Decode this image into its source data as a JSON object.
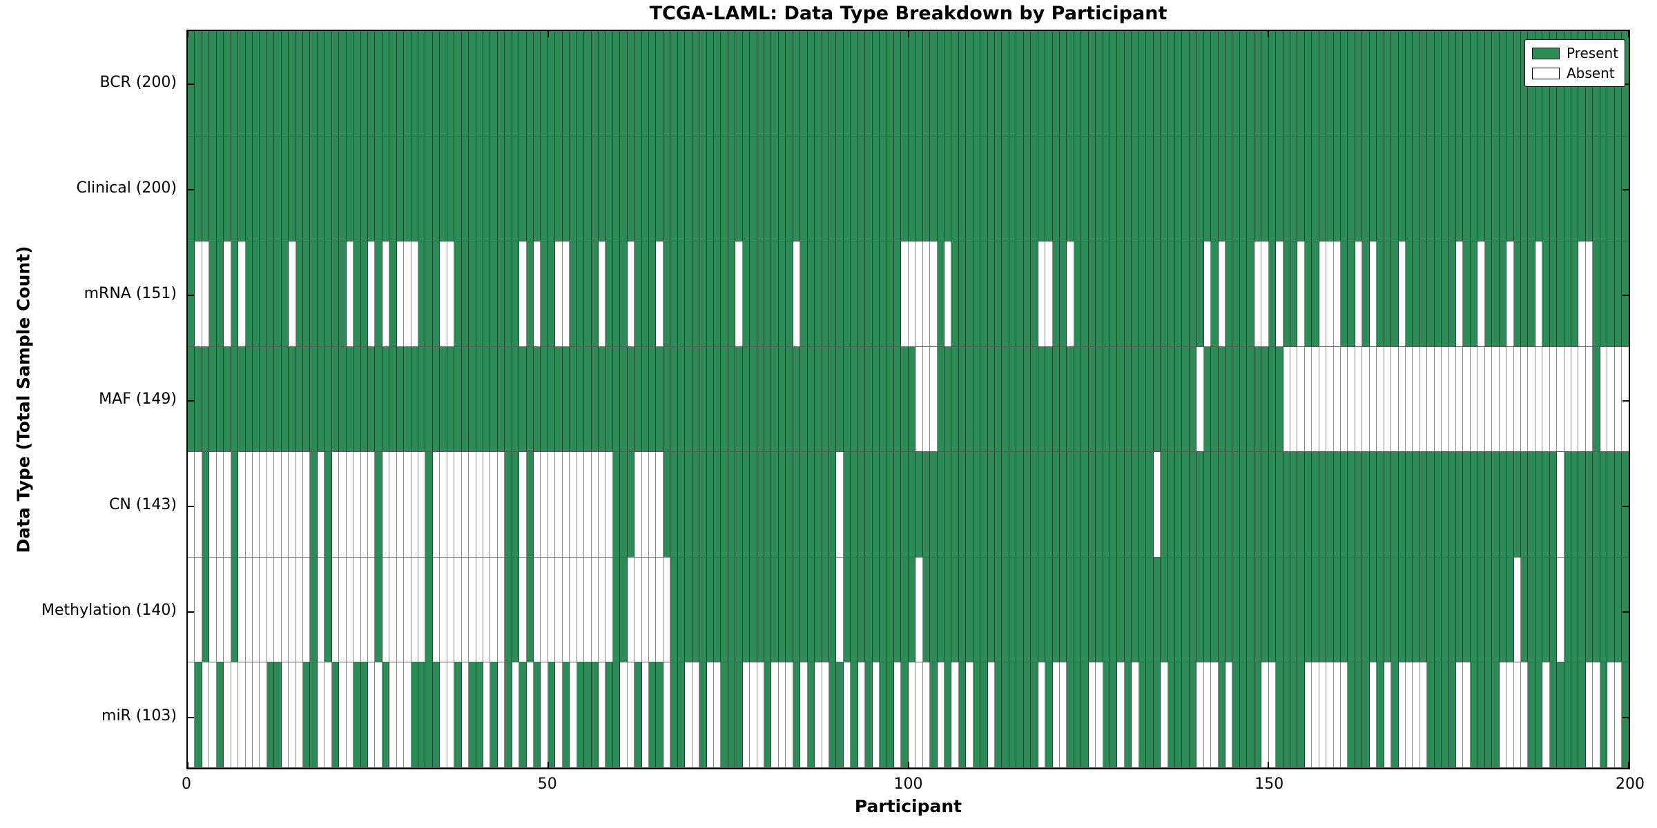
{
  "chart_data": {
    "type": "heatmap",
    "title": "TCGA-LAML: Data Type Breakdown by Participant",
    "xlabel": "Participant",
    "ylabel": "Data Type (Total Sample Count)",
    "x_ticks": [
      0,
      50,
      100,
      150,
      200
    ],
    "x_range": [
      0,
      200
    ],
    "n_participants": 200,
    "legend_position": "upper right",
    "grid": false,
    "present_color": "#2e8b57",
    "absent_color": "#ffffff",
    "legend": [
      {
        "label": "Present",
        "color": "#2e8b57"
      },
      {
        "label": "Absent",
        "color": "#ffffff"
      }
    ],
    "rows": [
      {
        "label": "BCR (200)",
        "name": "BCR",
        "total_present": 200,
        "absent": []
      },
      {
        "label": "Clinical (200)",
        "name": "Clinical",
        "total_present": 200,
        "absent": []
      },
      {
        "label": "mRNA (151)",
        "name": "mRNA",
        "total_present": 151,
        "absent": [
          1,
          2,
          5,
          7,
          14,
          22,
          25,
          27,
          29,
          30,
          31,
          35,
          36,
          46,
          48,
          51,
          52,
          57,
          61,
          65,
          76,
          84,
          99,
          100,
          101,
          102,
          103,
          105,
          118,
          119,
          122,
          141,
          143,
          148,
          149,
          151,
          154,
          157,
          158,
          159,
          162,
          164,
          168,
          176,
          179,
          183,
          187,
          193,
          194
        ]
      },
      {
        "label": "MAF (149)",
        "name": "MAF",
        "total_present": 149,
        "absent": [
          101,
          102,
          103,
          140,
          152,
          153,
          154,
          155,
          156,
          157,
          158,
          159,
          160,
          161,
          162,
          163,
          164,
          165,
          166,
          167,
          168,
          169,
          170,
          171,
          172,
          173,
          174,
          175,
          176,
          177,
          178,
          179,
          180,
          181,
          182,
          183,
          184,
          185,
          186,
          187,
          188,
          189,
          190,
          191,
          192,
          193,
          194,
          196,
          197,
          198,
          199
        ]
      },
      {
        "label": "CN (143)",
        "name": "CN",
        "total_present": 143,
        "absent": [
          0,
          1,
          3,
          4,
          5,
          7,
          8,
          9,
          10,
          11,
          12,
          13,
          14,
          15,
          16,
          18,
          20,
          21,
          22,
          23,
          24,
          25,
          27,
          28,
          29,
          30,
          31,
          32,
          34,
          35,
          36,
          37,
          38,
          39,
          40,
          41,
          42,
          43,
          46,
          48,
          49,
          50,
          51,
          52,
          53,
          54,
          55,
          56,
          57,
          58,
          62,
          63,
          64,
          65,
          90,
          134,
          190
        ]
      },
      {
        "label": "Methylation (140)",
        "name": "Methylation",
        "total_present": 140,
        "absent": [
          0,
          1,
          3,
          4,
          5,
          7,
          8,
          9,
          10,
          11,
          12,
          13,
          14,
          15,
          16,
          18,
          20,
          21,
          22,
          23,
          24,
          25,
          27,
          28,
          29,
          30,
          31,
          32,
          34,
          35,
          36,
          37,
          38,
          39,
          40,
          41,
          42,
          43,
          46,
          48,
          49,
          50,
          51,
          52,
          53,
          54,
          55,
          56,
          57,
          58,
          61,
          62,
          63,
          64,
          65,
          66,
          90,
          101,
          184,
          190
        ]
      },
      {
        "label": "miR (103)",
        "name": "miR",
        "total_present": 103,
        "absent": [
          0,
          2,
          3,
          5,
          6,
          7,
          8,
          9,
          10,
          13,
          14,
          15,
          18,
          19,
          21,
          22,
          25,
          26,
          28,
          29,
          30,
          35,
          36,
          38,
          41,
          43,
          45,
          47,
          49,
          51,
          53,
          57,
          60,
          61,
          63,
          66,
          69,
          70,
          72,
          73,
          77,
          78,
          79,
          81,
          82,
          83,
          85,
          87,
          88,
          91,
          93,
          95,
          98,
          100,
          101,
          102,
          104,
          106,
          108,
          111,
          118,
          120,
          121,
          125,
          126,
          129,
          131,
          135,
          140,
          141,
          142,
          144,
          149,
          150,
          155,
          156,
          157,
          158,
          159,
          160,
          164,
          166,
          168,
          169,
          170,
          171,
          176,
          177,
          182,
          183,
          184,
          185,
          188,
          194,
          195,
          197,
          198
        ]
      }
    ]
  }
}
